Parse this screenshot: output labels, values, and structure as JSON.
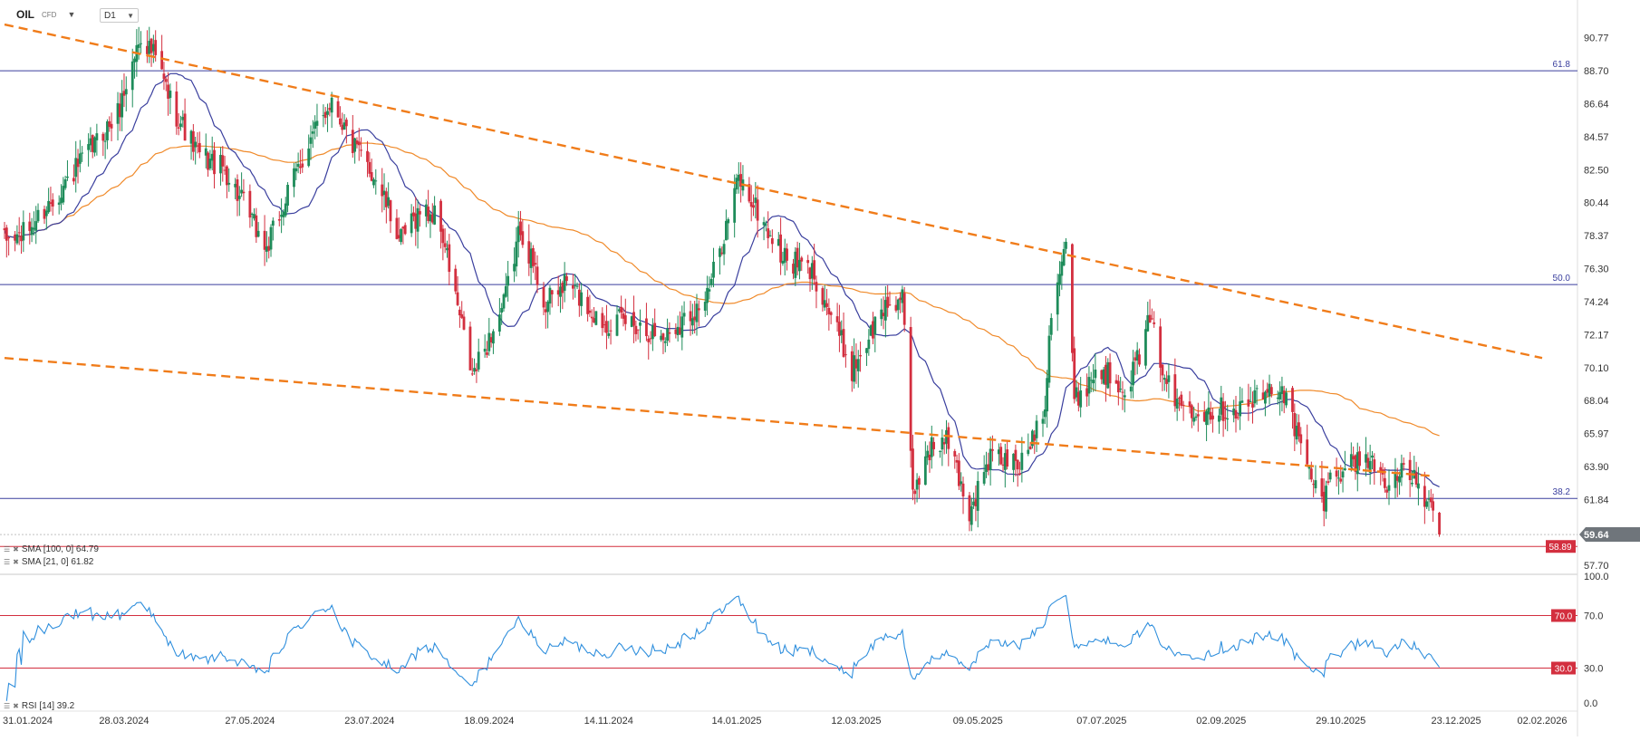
{
  "header": {
    "symbol": "OIL",
    "instrument_type": "CFD",
    "timeframe": "D1"
  },
  "indicator_labels": {
    "sma100": "SMA [100, 0] 64.79",
    "sma21": "SMA [21, 0] 61.82",
    "rsi": "RSI [14] 39.2"
  },
  "colors": {
    "bull": "#1e8c5a",
    "bear": "#d32f3f",
    "sma100": "#f08a2a",
    "sma21": "#3a3f9e",
    "fib": "#3a3f9e",
    "trend": "#f07c1a",
    "support": "#d32f3f",
    "rsi": "#2f8fdd",
    "rsi_level": "#d32f3f",
    "current_price_badge": "#6f757b"
  },
  "chart_data": [
    {
      "type": "candlestick",
      "y_ticks": [
        "90.77",
        "88.70",
        "86.64",
        "84.57",
        "82.50",
        "80.44",
        "78.37",
        "76.30",
        "74.24",
        "72.17",
        "70.10",
        "68.04",
        "65.97",
        "63.90",
        "61.84",
        "57.70"
      ],
      "ylim": [
        57.2,
        92.0
      ],
      "x_dates": [
        "31.01.2024",
        "28.03.2024",
        "27.05.2024",
        "23.07.2024",
        "18.09.2024",
        "14.11.2024",
        "14.01.2025",
        "12.03.2025",
        "09.05.2025",
        "07.07.2025",
        "02.09.2025",
        "29.10.2025",
        "23.12.2025",
        "02.02.2026"
      ],
      "current_price": "59.64",
      "support_price": "58.89",
      "fib_levels": [
        {
          "label": "61.8",
          "price": 88.7
        },
        {
          "label": "50.0",
          "price": 75.3
        },
        {
          "label": "38.2",
          "price": 61.9
        }
      ],
      "trendlines": [
        {
          "from": [
            "31.01.2024",
            91.6
          ],
          "to": [
            "02.02.2026",
            70.7
          ]
        },
        {
          "from": [
            "31.01.2024",
            70.7
          ],
          "to": [
            "12.12.2025",
            63.3
          ]
        }
      ],
      "anchors": [
        [
          "31.01.2024",
          78.0
        ],
        [
          "10.02.2024",
          78.5
        ],
        [
          "05.03.2024",
          82.5
        ],
        [
          "25.03.2024",
          86.0
        ],
        [
          "05.04.2024",
          91.0
        ],
        [
          "12.04.2024",
          89.5
        ],
        [
          "20.04.2024",
          86.5
        ],
        [
          "02.05.2024",
          83.5
        ],
        [
          "15.05.2024",
          82.5
        ],
        [
          "04.06.2024",
          77.5
        ],
        [
          "20.06.2024",
          83.0
        ],
        [
          "05.07.2024",
          87.0
        ],
        [
          "15.07.2024",
          84.0
        ],
        [
          "26.07.2024",
          82.0
        ],
        [
          "07.08.2024",
          78.0
        ],
        [
          "16.08.2024",
          80.0
        ],
        [
          "25.08.2024",
          79.5
        ],
        [
          "10.09.2024",
          69.5
        ],
        [
          "25.09.2024",
          74.0
        ],
        [
          "03.10.2024",
          79.0
        ],
        [
          "15.10.2024",
          74.0
        ],
        [
          "25.10.2024",
          75.5
        ],
        [
          "10.11.2024",
          73.0
        ],
        [
          "25.11.2024",
          73.0
        ],
        [
          "10.12.2024",
          72.0
        ],
        [
          "31.12.2024",
          74.5
        ],
        [
          "15.01.2025",
          82.0
        ],
        [
          "05.02.2025",
          77.0
        ],
        [
          "20.02.2025",
          76.0
        ],
        [
          "10.03.2025",
          70.0
        ],
        [
          "26.03.2025",
          74.0
        ],
        [
          "03.04.2025",
          74.5
        ],
        [
          "08.04.2025",
          62.0
        ],
        [
          "15.04.2025",
          65.0
        ],
        [
          "25.04.2025",
          65.5
        ],
        [
          "05.05.2025",
          61.0
        ],
        [
          "15.05.2025",
          64.5
        ],
        [
          "30.05.2025",
          64.0
        ],
        [
          "10.06.2025",
          68.0
        ],
        [
          "13.06.2025",
          74.0
        ],
        [
          "20.06.2025",
          78.0
        ],
        [
          "24.06.2025",
          68.0
        ],
        [
          "05.07.2025",
          70.0
        ],
        [
          "20.07.2025",
          69.0
        ],
        [
          "30.07.2025",
          73.0
        ],
        [
          "10.08.2025",
          68.0
        ],
        [
          "25.08.2025",
          67.5
        ],
        [
          "10.09.2025",
          67.5
        ],
        [
          "01.10.2025",
          69.0
        ],
        [
          "10.10.2025",
          65.0
        ],
        [
          "20.10.2025",
          61.5
        ],
        [
          "25.10.2025",
          63.5
        ],
        [
          "10.11.2025",
          64.5
        ],
        [
          "20.11.2025",
          63.0
        ],
        [
          "01.12.2025",
          63.5
        ],
        [
          "08.12.2025",
          62.0
        ],
        [
          "15.12.2025",
          59.64
        ]
      ]
    },
    {
      "type": "line",
      "title": "RSI [14]",
      "y_ticks": [
        "100.0",
        "70.0",
        "30.0",
        "0.0"
      ],
      "ylim": [
        0,
        100
      ],
      "levels": [
        {
          "label": "70.0",
          "value": 70
        },
        {
          "label": "30.0",
          "value": 30
        }
      ],
      "last_value": 39.2
    }
  ]
}
